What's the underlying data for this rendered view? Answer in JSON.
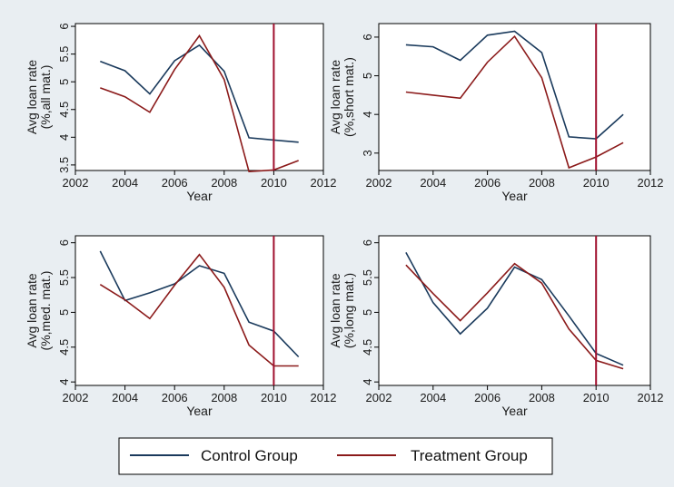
{
  "chart_data": [
    {
      "type": "line",
      "xlabel": "Year",
      "ylabel": "Avg loan rate",
      "ylabel2": "(%,all mat.)",
      "xlim": [
        2002,
        2012
      ],
      "ylim": [
        3.4,
        6.05
      ],
      "xticks": [
        "2002",
        "2004",
        "2006",
        "2008",
        "2010",
        "2012"
      ],
      "yticks": [
        "3.5",
        "4",
        "4.5",
        "5",
        "5.5",
        "6"
      ],
      "vline_x": 2010,
      "x": [
        2003,
        2004,
        2005,
        2006,
        2007,
        2008,
        2009,
        2010,
        2011
      ],
      "series": [
        {
          "name": "Control Group",
          "values": [
            5.37,
            5.2,
            4.78,
            5.38,
            5.66,
            5.19,
            3.99,
            3.95,
            3.91
          ]
        },
        {
          "name": "Treatment Group",
          "values": [
            4.89,
            4.73,
            4.45,
            5.22,
            5.83,
            5.04,
            3.38,
            3.41,
            3.58
          ]
        }
      ]
    },
    {
      "type": "line",
      "xlabel": "Year",
      "ylabel": "Avg loan rate",
      "ylabel2": "(%,short mat.)",
      "xlim": [
        2002,
        2012
      ],
      "ylim": [
        2.55,
        6.35
      ],
      "xticks": [
        "2002",
        "2004",
        "2006",
        "2008",
        "2010",
        "2012"
      ],
      "yticks": [
        "3",
        "4",
        "5",
        "6"
      ],
      "vline_x": 2010,
      "x": [
        2003,
        2004,
        2005,
        2006,
        2007,
        2008,
        2009,
        2010,
        2011
      ],
      "series": [
        {
          "name": "Control Group",
          "values": [
            5.8,
            5.75,
            5.4,
            6.05,
            6.15,
            5.6,
            3.42,
            3.37,
            4.0
          ]
        },
        {
          "name": "Treatment Group",
          "values": [
            4.58,
            4.5,
            4.42,
            5.35,
            6.02,
            4.95,
            2.62,
            2.9,
            3.27
          ]
        }
      ]
    },
    {
      "type": "line",
      "xlabel": "Year",
      "ylabel": "Avg loan rate",
      "ylabel2": "(%,med. mat.)",
      "xlim": [
        2002,
        2012
      ],
      "ylim": [
        3.95,
        6.1
      ],
      "xticks": [
        "2002",
        "2004",
        "2006",
        "2008",
        "2010",
        "2012"
      ],
      "yticks": [
        "4",
        "4.5",
        "5",
        "5.5",
        "6"
      ],
      "vline_x": 2010,
      "x": [
        2003,
        2004,
        2005,
        2006,
        2007,
        2008,
        2009,
        2010,
        2011
      ],
      "series": [
        {
          "name": "Control Group",
          "values": [
            5.88,
            5.17,
            5.28,
            5.41,
            5.67,
            5.56,
            4.86,
            4.73,
            4.36
          ]
        },
        {
          "name": "Treatment Group",
          "values": [
            5.4,
            5.18,
            4.91,
            5.39,
            5.83,
            5.36,
            4.53,
            4.23,
            4.23
          ]
        }
      ]
    },
    {
      "type": "line",
      "xlabel": "Year",
      "ylabel": "Avg loan rate",
      "ylabel2": "(%,long mat.)",
      "xlim": [
        2002,
        2012
      ],
      "ylim": [
        3.95,
        6.1
      ],
      "xticks": [
        "2002",
        "2004",
        "2006",
        "2008",
        "2010",
        "2012"
      ],
      "yticks": [
        "4",
        "4.5",
        "5",
        "5.5",
        "6"
      ],
      "vline_x": 2010,
      "x": [
        2003,
        2004,
        2005,
        2006,
        2007,
        2008,
        2009,
        2010,
        2011
      ],
      "series": [
        {
          "name": "Control Group",
          "values": [
            5.86,
            5.14,
            4.69,
            5.06,
            5.65,
            5.47,
            4.95,
            4.41,
            4.24
          ]
        },
        {
          "name": "Treatment Group",
          "values": [
            5.68,
            5.27,
            4.88,
            5.28,
            5.7,
            5.42,
            4.76,
            4.31,
            4.19
          ]
        }
      ]
    }
  ],
  "legend": {
    "items": [
      {
        "label": "Control Group"
      },
      {
        "label": "Treatment Group"
      }
    ]
  },
  "colors": {
    "background": "#e9eef2",
    "plot_background": "#ffffff",
    "control": "#1a3a5c",
    "treatment": "#8b1a1a",
    "vline": "#a0102e",
    "frame": "#000000"
  }
}
